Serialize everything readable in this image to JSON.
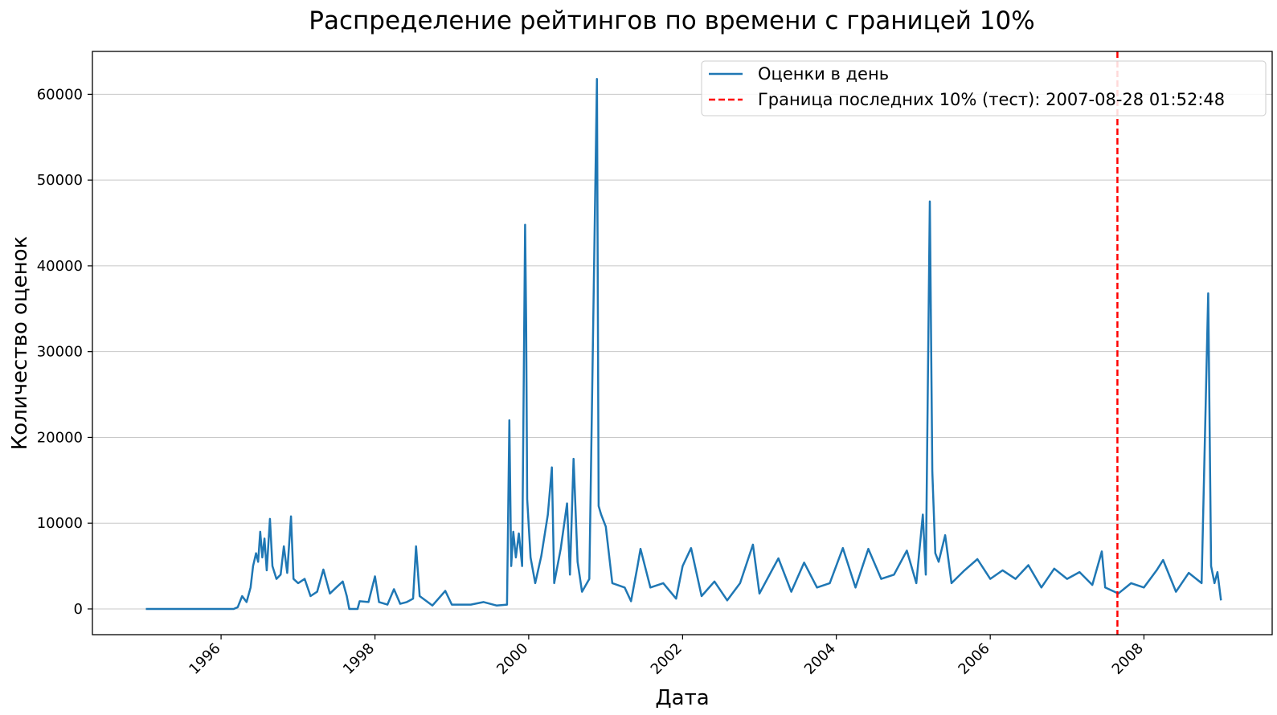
{
  "chart_data": {
    "type": "line",
    "title": "Распределение рейтингов по времени с границей 10%",
    "xlabel": "Дата",
    "ylabel": "Количество оценок",
    "xlim": [
      "1994-04-30",
      "2009-09-01"
    ],
    "ylim": [
      -3000,
      65000
    ],
    "x_ticks": [
      "1996",
      "1998",
      "2000",
      "2002",
      "2004",
      "2006",
      "2008"
    ],
    "y_ticks": [
      0,
      10000,
      20000,
      30000,
      40000,
      50000,
      60000
    ],
    "grid": "y",
    "legend_position": "top-right",
    "colors": {
      "series": "#1f77b4",
      "boundary": "#ff0000",
      "grid": "#c8c8c8"
    },
    "series": [
      {
        "name": "Оценки в день",
        "points": [
          [
            "1995-01-09",
            0
          ],
          [
            "1996-03-01",
            0
          ],
          [
            "1996-03-20",
            200
          ],
          [
            "1996-04-10",
            1500
          ],
          [
            "1996-05-01",
            800
          ],
          [
            "1996-05-20",
            2500
          ],
          [
            "1996-06-01",
            5000
          ],
          [
            "1996-06-15",
            6500
          ],
          [
            "1996-06-25",
            5500
          ],
          [
            "1996-07-05",
            9000
          ],
          [
            "1996-07-15",
            6000
          ],
          [
            "1996-07-25",
            8200
          ],
          [
            "1996-08-05",
            4500
          ],
          [
            "1996-08-20",
            10500
          ],
          [
            "1996-09-01",
            5000
          ],
          [
            "1996-09-20",
            3500
          ],
          [
            "1996-10-10",
            4000
          ],
          [
            "1996-10-25",
            7300
          ],
          [
            "1996-11-10",
            4200
          ],
          [
            "1996-11-28",
            10800
          ],
          [
            "1996-12-10",
            3500
          ],
          [
            "1997-01-01",
            3000
          ],
          [
            "1997-02-01",
            3500
          ],
          [
            "1997-03-01",
            1500
          ],
          [
            "1997-04-01",
            2000
          ],
          [
            "1997-05-01",
            4600
          ],
          [
            "1997-06-01",
            1800
          ],
          [
            "1997-07-01",
            2500
          ],
          [
            "1997-08-01",
            3200
          ],
          [
            "1997-08-20",
            1500
          ],
          [
            "1997-09-01",
            0
          ],
          [
            "1997-10-10",
            0
          ],
          [
            "1997-10-20",
            900
          ],
          [
            "1997-12-01",
            800
          ],
          [
            "1998-01-01",
            3800
          ],
          [
            "1998-01-20",
            800
          ],
          [
            "1998-03-01",
            500
          ],
          [
            "1998-04-01",
            2300
          ],
          [
            "1998-05-01",
            600
          ],
          [
            "1998-06-01",
            800
          ],
          [
            "1998-07-01",
            1200
          ],
          [
            "1998-07-15",
            7300
          ],
          [
            "1998-08-01",
            1500
          ],
          [
            "1998-10-01",
            400
          ],
          [
            "1998-12-01",
            2100
          ],
          [
            "1999-01-01",
            500
          ],
          [
            "1999-04-01",
            500
          ],
          [
            "1999-06-01",
            800
          ],
          [
            "1999-08-01",
            400
          ],
          [
            "1999-09-20",
            500
          ],
          [
            "1999-10-01",
            22000
          ],
          [
            "1999-10-10",
            5000
          ],
          [
            "1999-10-20",
            9000
          ],
          [
            "1999-11-01",
            6000
          ],
          [
            "1999-11-15",
            8800
          ],
          [
            "1999-12-01",
            5000
          ],
          [
            "1999-12-15",
            44800
          ],
          [
            "1999-12-20",
            33500
          ],
          [
            "1999-12-25",
            12800
          ],
          [
            "2000-01-10",
            6000
          ],
          [
            "2000-02-01",
            3000
          ],
          [
            "2000-03-01",
            6200
          ],
          [
            "2000-04-01",
            11000
          ],
          [
            "2000-04-20",
            16500
          ],
          [
            "2000-05-01",
            3000
          ],
          [
            "2000-06-01",
            7000
          ],
          [
            "2000-07-01",
            12300
          ],
          [
            "2000-07-15",
            4000
          ],
          [
            "2000-08-01",
            17500
          ],
          [
            "2000-08-20",
            5500
          ],
          [
            "2000-09-10",
            2000
          ],
          [
            "2000-10-15",
            3500
          ],
          [
            "2000-11-20",
            61800
          ],
          [
            "2000-11-28",
            12000
          ],
          [
            "2000-12-10",
            11000
          ],
          [
            "2001-01-01",
            9600
          ],
          [
            "2001-02-01",
            3000
          ],
          [
            "2001-04-01",
            2500
          ],
          [
            "2001-05-01",
            900
          ],
          [
            "2001-06-01",
            5000
          ],
          [
            "2001-06-15",
            7000
          ],
          [
            "2001-08-01",
            2500
          ],
          [
            "2001-10-01",
            3000
          ],
          [
            "2001-12-01",
            1200
          ],
          [
            "2002-01-01",
            5000
          ],
          [
            "2002-02-10",
            7100
          ],
          [
            "2002-04-01",
            1500
          ],
          [
            "2002-06-01",
            3200
          ],
          [
            "2002-08-01",
            1000
          ],
          [
            "2002-10-01",
            3000
          ],
          [
            "2002-12-01",
            7500
          ],
          [
            "2003-01-01",
            1800
          ],
          [
            "2003-03-01",
            4500
          ],
          [
            "2003-04-01",
            5900
          ],
          [
            "2003-06-01",
            2000
          ],
          [
            "2003-08-01",
            5400
          ],
          [
            "2003-10-01",
            2500
          ],
          [
            "2003-12-01",
            3000
          ],
          [
            "2004-02-01",
            7100
          ],
          [
            "2004-04-01",
            2500
          ],
          [
            "2004-06-01",
            7000
          ],
          [
            "2004-08-01",
            3500
          ],
          [
            "2004-10-01",
            4000
          ],
          [
            "2004-12-01",
            6800
          ],
          [
            "2005-01-15",
            3000
          ],
          [
            "2005-02-15",
            11000
          ],
          [
            "2005-03-01",
            4000
          ],
          [
            "2005-03-20",
            47500
          ],
          [
            "2005-04-01",
            16000
          ],
          [
            "2005-04-15",
            6500
          ],
          [
            "2005-05-01",
            5500
          ],
          [
            "2005-06-01",
            8600
          ],
          [
            "2005-07-01",
            3000
          ],
          [
            "2005-09-01",
            4500
          ],
          [
            "2005-11-01",
            5800
          ],
          [
            "2006-01-01",
            3500
          ],
          [
            "2006-03-01",
            4500
          ],
          [
            "2006-05-01",
            3500
          ],
          [
            "2006-07-01",
            5100
          ],
          [
            "2006-09-01",
            2500
          ],
          [
            "2006-11-01",
            4700
          ],
          [
            "2007-01-01",
            3500
          ],
          [
            "2007-03-01",
            4300
          ],
          [
            "2007-05-01",
            2800
          ],
          [
            "2007-06-15",
            6700
          ],
          [
            "2007-07-01",
            2500
          ],
          [
            "2007-09-01",
            1800
          ],
          [
            "2007-11-01",
            3000
          ],
          [
            "2008-01-01",
            2500
          ],
          [
            "2008-03-01",
            4500
          ],
          [
            "2008-04-01",
            5700
          ],
          [
            "2008-06-01",
            2000
          ],
          [
            "2008-08-01",
            4200
          ],
          [
            "2008-10-01",
            3000
          ],
          [
            "2008-11-01",
            36800
          ],
          [
            "2008-11-15",
            5000
          ],
          [
            "2008-12-01",
            3000
          ],
          [
            "2008-12-15",
            4300
          ],
          [
            "2009-01-01",
            1000
          ]
        ]
      }
    ],
    "boundary": {
      "label": "Граница последних 10% (тест): 2007-08-28 01:52:48",
      "date": "2007-08-28"
    }
  }
}
